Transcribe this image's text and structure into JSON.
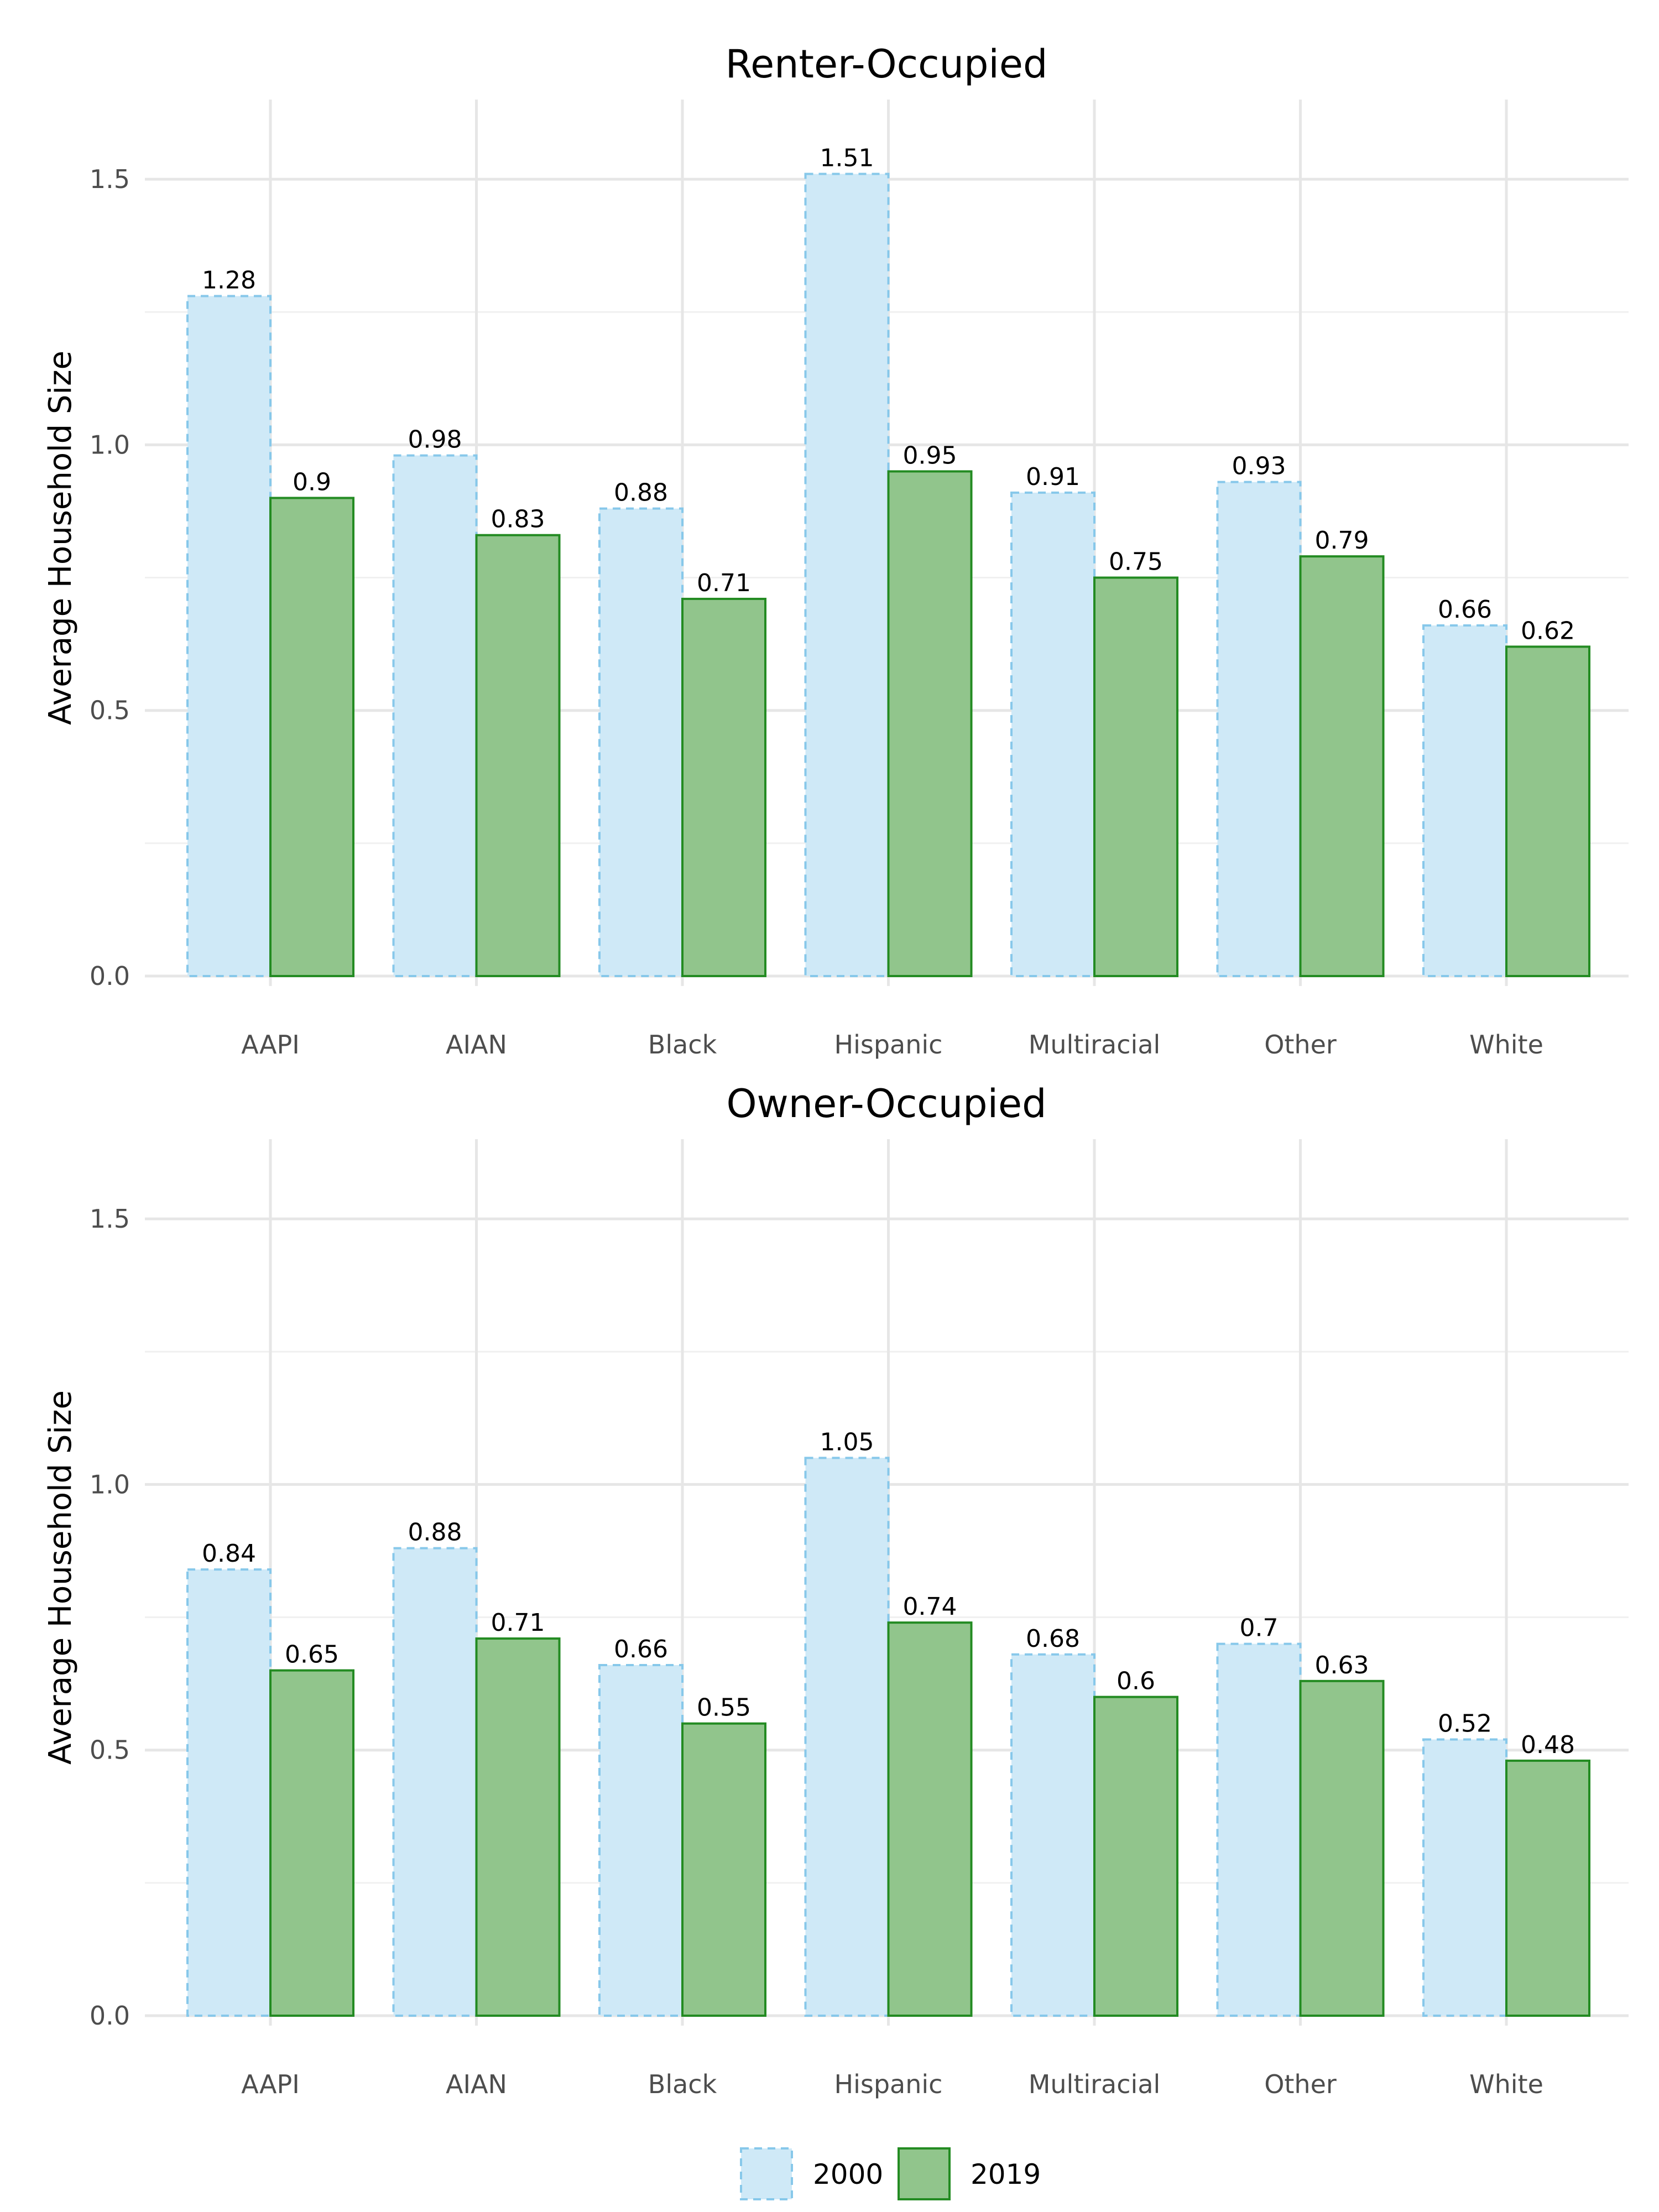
{
  "chart_data": [
    {
      "type": "bar",
      "title": "Renter-Occupied",
      "xlabel": "",
      "ylabel": "Average Household Size",
      "ylim": [
        0,
        1.65
      ],
      "yticks": [
        "0.0",
        "0.5",
        "1.0",
        "1.5"
      ],
      "grid": true,
      "categories": [
        "AAPI",
        "AIAN",
        "Black",
        "Hispanic",
        "Multiracial",
        "Other",
        "White"
      ],
      "series": [
        {
          "name": "2000",
          "values": [
            1.28,
            0.98,
            0.88,
            1.51,
            0.91,
            0.93,
            0.66
          ],
          "labels": [
            "1.28",
            "0.98",
            "0.88",
            "1.51",
            "0.91",
            "0.93",
            "0.66"
          ]
        },
        {
          "name": "2019",
          "values": [
            0.9,
            0.83,
            0.71,
            0.95,
            0.75,
            0.79,
            0.62
          ],
          "labels": [
            "0.9",
            "0.83",
            "0.71",
            "0.95",
            "0.75",
            "0.79",
            "0.62"
          ]
        }
      ]
    },
    {
      "type": "bar",
      "title": "Owner-Occupied",
      "xlabel": "",
      "ylabel": "Average Household Size",
      "ylim": [
        0,
        1.65
      ],
      "yticks": [
        "0.0",
        "0.5",
        "1.0",
        "1.5"
      ],
      "grid": true,
      "categories": [
        "AAPI",
        "AIAN",
        "Black",
        "Hispanic",
        "Multiracial",
        "Other",
        "White"
      ],
      "series": [
        {
          "name": "2000",
          "values": [
            0.84,
            0.88,
            0.66,
            1.05,
            0.68,
            0.7,
            0.52
          ],
          "labels": [
            "0.84",
            "0.88",
            "0.66",
            "1.05",
            "0.68",
            "0.7",
            "0.52"
          ]
        },
        {
          "name": "2019",
          "values": [
            0.65,
            0.71,
            0.55,
            0.74,
            0.6,
            0.63,
            0.48
          ],
          "labels": [
            "0.65",
            "0.71",
            "0.55",
            "0.74",
            "0.6",
            "0.63",
            "0.48"
          ]
        }
      ]
    }
  ],
  "legend": {
    "position": "bottom",
    "items": [
      {
        "label": "2000",
        "fill": "#cfe9f7",
        "stroke": "#87c8ea",
        "dashed": true
      },
      {
        "label": "2019",
        "fill": "#91c58c",
        "stroke": "#238b22",
        "dashed": false
      }
    ]
  },
  "colors": {
    "series_2000_fill": "#cfe9f7",
    "series_2000_stroke": "#87c8ea",
    "series_2019_fill": "#91c58c",
    "series_2019_stroke": "#238b22",
    "grid": "#e6e6e6",
    "tick_text": "#4d4d4d"
  }
}
